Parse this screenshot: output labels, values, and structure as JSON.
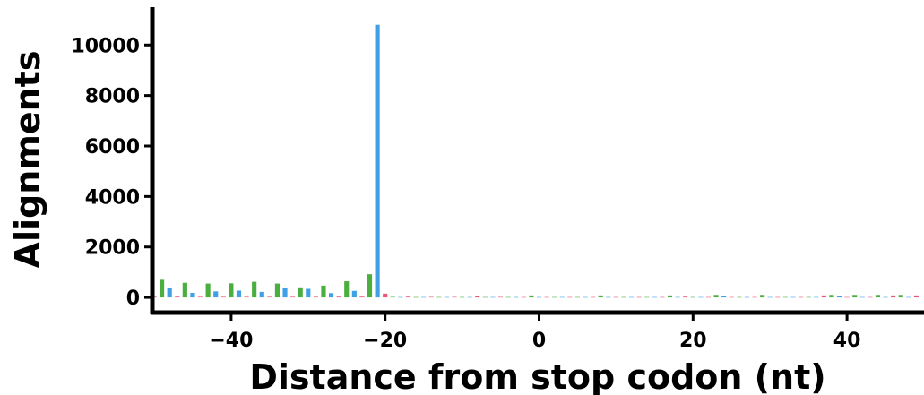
{
  "chart_data": {
    "type": "bar",
    "title": "",
    "xlabel": "Distance from stop codon (nt)",
    "ylabel": "Alignments",
    "xlim": [
      -50,
      50
    ],
    "ylim": [
      -600,
      11500
    ],
    "xticks": [
      -40,
      -20,
      0,
      20,
      40
    ],
    "xtick_labels": [
      "−40",
      "−20",
      "0",
      "20",
      "40"
    ],
    "yticks": [
      0,
      2000,
      4000,
      6000,
      8000,
      10000
    ],
    "ytick_labels": [
      "0",
      "2000",
      "4000",
      "6000",
      "8000",
      "10000"
    ],
    "grid": false,
    "bar_width": 0.6,
    "frame_colors": {
      "0": "#e6577a",
      "1": "#4aaf3f",
      "2": "#3fa0e6"
    },
    "positions": [
      -50,
      -49,
      -48,
      -47,
      -46,
      -45,
      -44,
      -43,
      -42,
      -41,
      -40,
      -39,
      -38,
      -37,
      -36,
      -35,
      -34,
      -33,
      -32,
      -31,
      -30,
      -29,
      -28,
      -27,
      -26,
      -25,
      -24,
      -23,
      -22,
      -21,
      -20,
      -19,
      -18,
      -17,
      -16,
      -15,
      -14,
      -13,
      -12,
      -11,
      -10,
      -9,
      -8,
      -7,
      -6,
      -5,
      -4,
      -3,
      -2,
      -1,
      0,
      1,
      2,
      3,
      4,
      5,
      6,
      7,
      8,
      9,
      10,
      11,
      12,
      13,
      14,
      15,
      16,
      17,
      18,
      19,
      20,
      21,
      22,
      23,
      24,
      25,
      26,
      27,
      28,
      29,
      30,
      31,
      32,
      33,
      34,
      35,
      36,
      37,
      38,
      39,
      40,
      41,
      42,
      43,
      44,
      45,
      46,
      47,
      48,
      49
    ],
    "series": [
      {
        "frame": 0,
        "color": "#e6577a",
        "x": [
          -50,
          -47,
          -44,
          -41,
          -38,
          -35,
          -32,
          -29,
          -26,
          -23,
          -20,
          -17,
          -14,
          -11,
          -8,
          -5,
          -2,
          1,
          4,
          7,
          10,
          13,
          16,
          19,
          22,
          25,
          28,
          31,
          34,
          37,
          40,
          43,
          46,
          49
        ],
        "values": [
          30,
          30,
          25,
          25,
          25,
          25,
          25,
          25,
          30,
          30,
          150,
          30,
          20,
          20,
          60,
          20,
          15,
          15,
          15,
          15,
          15,
          15,
          15,
          30,
          15,
          15,
          15,
          15,
          15,
          80,
          15,
          15,
          80,
          80
        ]
      },
      {
        "frame": 1,
        "color": "#4aaf3f",
        "x": [
          -49,
          -46,
          -43,
          -40,
          -37,
          -34,
          -31,
          -28,
          -25,
          -22,
          -19,
          -16,
          -13,
          -10,
          -7,
          -4,
          -1,
          2,
          5,
          8,
          11,
          14,
          17,
          20,
          23,
          26,
          29,
          32,
          35,
          38,
          41,
          44,
          47
        ],
        "values": [
          700,
          580,
          550,
          560,
          620,
          550,
          400,
          470,
          640,
          920,
          20,
          15,
          15,
          15,
          15,
          15,
          80,
          15,
          15,
          80,
          15,
          15,
          80,
          15,
          100,
          15,
          100,
          15,
          15,
          100,
          100,
          100,
          100
        ]
      },
      {
        "frame": 2,
        "color": "#3fa0e6",
        "x": [
          -48,
          -45,
          -42,
          -39,
          -36,
          -33,
          -30,
          -27,
          -24,
          -21,
          -18,
          -15,
          -12,
          -9,
          -6,
          -3,
          0,
          3,
          6,
          9,
          12,
          15,
          18,
          21,
          24,
          27,
          30,
          33,
          36,
          39,
          42,
          45,
          48
        ],
        "values": [
          360,
          180,
          240,
          270,
          220,
          390,
          340,
          170,
          260,
          10800,
          15,
          15,
          15,
          15,
          15,
          15,
          15,
          15,
          15,
          15,
          15,
          15,
          15,
          15,
          60,
          15,
          15,
          15,
          15,
          60,
          15,
          15,
          15
        ]
      }
    ]
  }
}
